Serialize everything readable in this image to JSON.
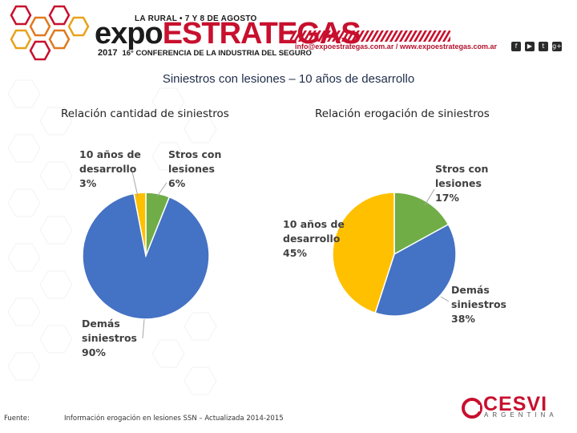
{
  "header": {
    "top_line": "LA RURAL • 7 Y 8 DE AGOSTO",
    "brand_part1": "expo",
    "brand_part2": "ESTRATEGAS",
    "year": "2017",
    "conference": "16° CONFERENCIA DE LA INDUSTRIA DEL SEGURO",
    "contact": "info@expoestrategas.com.ar / www.expoestrategas.com.ar",
    "social": [
      "f",
      "▶",
      "t",
      "g+"
    ]
  },
  "slide_title": "Siniestros con lesiones – 10 años de desarrollo",
  "chart_data": [
    {
      "type": "pie",
      "title": "Relación cantidad de siniestros",
      "slices": [
        {
          "label_lines": [
            "Stros con",
            "lesiones"
          ],
          "value": 6,
          "value_text": "6%",
          "color": "#70ad47"
        },
        {
          "label_lines": [
            "Demás",
            "siniestros"
          ],
          "value": 90,
          "value_text": "90%",
          "color": "#4472c4"
        },
        {
          "label_lines": [
            "10 años de",
            "desarrollo"
          ],
          "value": 3,
          "value_text": "3%",
          "color": "#ffc000"
        }
      ]
    },
    {
      "type": "pie",
      "title": "Relación erogación de siniestros",
      "slices": [
        {
          "label_lines": [
            "Stros con",
            "lesiones"
          ],
          "value": 17,
          "value_text": "17%",
          "color": "#70ad47"
        },
        {
          "label_lines": [
            "Demás",
            "siniestros"
          ],
          "value": 38,
          "value_text": "38%",
          "color": "#4472c4"
        },
        {
          "label_lines": [
            "10 años de",
            "desarrollo"
          ],
          "value": 45,
          "value_text": "45%",
          "color": "#ffc000"
        }
      ]
    }
  ],
  "footer": {
    "source_label": "Fuente:",
    "source_text": "Información erogación en lesiones SSN – Actualizada 2014-2015",
    "logo_name": "CESVI",
    "logo_sub": "ARGENTINA"
  }
}
